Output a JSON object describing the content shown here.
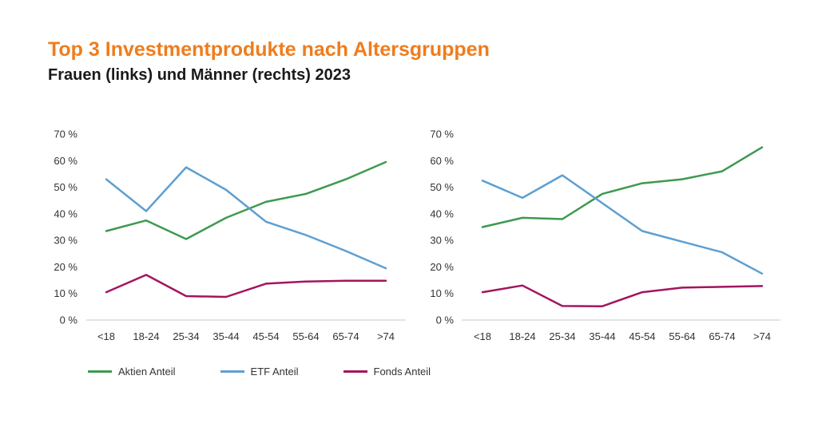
{
  "header": {
    "title": "Top 3 Investmentprodukte nach Altersgruppen",
    "subtitle": "Frauen (links) und Männer (rechts) 2023"
  },
  "legend": [
    {
      "label": "Aktien Anteil",
      "color": "#3d9a4f"
    },
    {
      "label": "ETF Anteil",
      "color": "#5d9fd2"
    },
    {
      "label": "Fonds Anteil",
      "color": "#a3155e"
    }
  ],
  "chart_data": [
    {
      "type": "line",
      "categories": [
        "<18",
        "18-24",
        "25-34",
        "35-44",
        "45-54",
        "55-64",
        "65-74",
        ">74"
      ],
      "ylim": [
        0,
        70
      ],
      "yticks": [
        "0 %",
        "10 %",
        "20 %",
        "30 %",
        "40 %",
        "50 %",
        "60 %",
        "70 %"
      ],
      "grid": false,
      "series": [
        {
          "name": "Aktien Anteil",
          "color": "#3d9a4f",
          "values": [
            33.5,
            37.5,
            30.5,
            38.5,
            44.5,
            47.5,
            53,
            59.5
          ]
        },
        {
          "name": "ETF Anteil",
          "color": "#5d9fd2",
          "values": [
            53,
            41,
            57.5,
            49,
            37,
            32,
            26,
            19.5
          ]
        },
        {
          "name": "Fonds Anteil",
          "color": "#a3155e",
          "values": [
            10.5,
            17,
            9,
            8.7,
            13.7,
            14.5,
            14.8,
            14.8
          ]
        }
      ]
    },
    {
      "type": "line",
      "categories": [
        "<18",
        "18-24",
        "25-34",
        "35-44",
        "45-54",
        "55-64",
        "65-74",
        ">74"
      ],
      "ylim": [
        0,
        70
      ],
      "yticks": [
        "0 %",
        "10 %",
        "20 %",
        "30 %",
        "40 %",
        "50 %",
        "60 %",
        "70 %"
      ],
      "grid": false,
      "series": [
        {
          "name": "Aktien Anteil",
          "color": "#3d9a4f",
          "values": [
            35,
            38.5,
            38,
            47.5,
            51.5,
            53,
            56,
            65
          ]
        },
        {
          "name": "ETF Anteil",
          "color": "#5d9fd2",
          "values": [
            52.5,
            46,
            54.5,
            44,
            33.5,
            29.5,
            25.5,
            17.5
          ]
        },
        {
          "name": "Fonds Anteil",
          "color": "#a3155e",
          "values": [
            10.5,
            13,
            5.3,
            5.2,
            10.5,
            12.2,
            12.5,
            12.8
          ]
        }
      ]
    }
  ]
}
